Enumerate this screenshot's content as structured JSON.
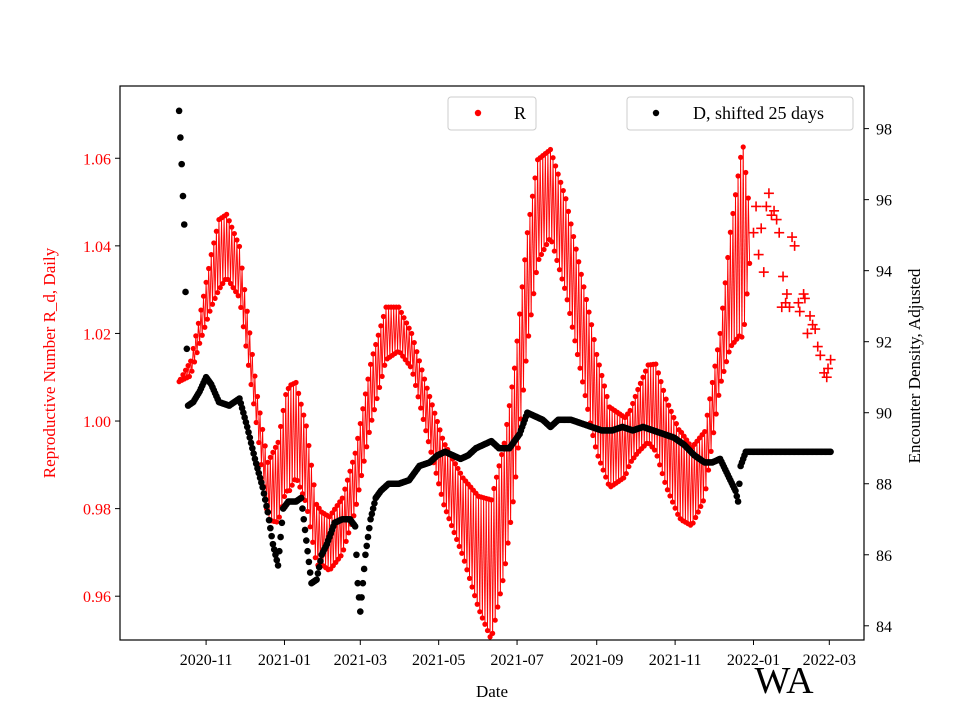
{
  "chart_data": {
    "type": "scatter",
    "xlabel": "Date",
    "x_tick_labels": [
      "2020-11",
      "2021-01",
      "2021-03",
      "2021-05",
      "2021-07",
      "2021-09",
      "2021-11",
      "2022-01",
      "2022-03"
    ],
    "x_tick_days": [
      0,
      61,
      120,
      181,
      242,
      304,
      365,
      426,
      485
    ],
    "x_range_days": [
      -67,
      512
    ],
    "left_axis": {
      "label": "Reproductive Number R_d, Daily",
      "color": "#ff0000",
      "ylim": [
        0.95,
        1.0765
      ],
      "ticks": [
        0.96,
        0.98,
        1.0,
        1.02,
        1.04,
        1.06
      ],
      "tick_labels": [
        "0.96",
        "0.98",
        "1.00",
        "1.02",
        "1.04",
        "1.06"
      ]
    },
    "right_axis": {
      "label": "Encounter Density, Adjusted",
      "color": "#000000",
      "ylim": [
        83.6,
        99.2
      ],
      "ticks": [
        84,
        86,
        88,
        90,
        92,
        94,
        96,
        98
      ],
      "tick_labels": [
        "84",
        "86",
        "88",
        "90",
        "92",
        "94",
        "96",
        "98"
      ]
    },
    "legend_left": {
      "label": "R",
      "color": "#ff0000",
      "placement": "top-center"
    },
    "legend_right": {
      "label": "D, shifted 25 days",
      "color": "#000000",
      "placement": "top-right"
    },
    "series": [
      {
        "name": "R",
        "axis": "left",
        "color": "#ff0000",
        "marker": "dot",
        "day_range": [
          -21,
          423
        ],
        "trend_knots": [
          [
            -21,
            1.009
          ],
          [
            -12,
            1.012
          ],
          [
            -4,
            1.022
          ],
          [
            4,
            1.032
          ],
          [
            10,
            1.038
          ],
          [
            16,
            1.04
          ],
          [
            26,
            1.034
          ],
          [
            38,
            1.006
          ],
          [
            48,
            0.984
          ],
          [
            56,
            0.986
          ],
          [
            62,
            0.995
          ],
          [
            70,
            0.998
          ],
          [
            78,
            0.99
          ],
          [
            86,
            0.974
          ],
          [
            96,
            0.972
          ],
          [
            106,
            0.976
          ],
          [
            116,
            0.986
          ],
          [
            128,
            1.006
          ],
          [
            140,
            1.02
          ],
          [
            150,
            1.021
          ],
          [
            160,
            1.016
          ],
          [
            172,
            1.002
          ],
          [
            185,
            0.988
          ],
          [
            200,
            0.978
          ],
          [
            212,
            0.97
          ],
          [
            222,
            0.966
          ],
          [
            232,
            0.98
          ],
          [
            240,
            0.998
          ],
          [
            250,
            1.03
          ],
          [
            258,
            1.048
          ],
          [
            268,
            1.052
          ],
          [
            280,
            1.04
          ],
          [
            292,
            1.022
          ],
          [
            304,
            1.004
          ],
          [
            314,
            0.994
          ],
          [
            326,
            0.994
          ],
          [
            336,
            1.0
          ],
          [
            344,
            1.004
          ],
          [
            350,
            1.003
          ],
          [
            358,
            0.995
          ],
          [
            368,
            0.988
          ],
          [
            378,
            0.985
          ],
          [
            388,
            0.99
          ],
          [
            398,
            1.01
          ],
          [
            408,
            1.03
          ],
          [
            416,
            1.04
          ],
          [
            423,
            1.042
          ]
        ],
        "oscillation_amplitude": [
          [
            -21,
            0.0
          ],
          [
            -5,
            0.003
          ],
          [
            10,
            0.008
          ],
          [
            40,
            0.004
          ],
          [
            65,
            0.012
          ],
          [
            90,
            0.006
          ],
          [
            130,
            0.007
          ],
          [
            160,
            0.004
          ],
          [
            200,
            0.009
          ],
          [
            222,
            0.016
          ],
          [
            250,
            0.013
          ],
          [
            268,
            0.01
          ],
          [
            300,
            0.012
          ],
          [
            330,
            0.006
          ],
          [
            350,
            0.01
          ],
          [
            370,
            0.01
          ],
          [
            400,
            0.006
          ],
          [
            418,
            0.022
          ],
          [
            423,
            0.006
          ]
        ]
      },
      {
        "name": "R (projected)",
        "axis": "left",
        "color": "#ff0000",
        "marker": "plus",
        "points": [
          [
            426,
            1.043
          ],
          [
            428,
            1.049
          ],
          [
            430,
            1.038
          ],
          [
            432,
            1.044
          ],
          [
            434,
            1.034
          ],
          [
            436,
            1.049
          ],
          [
            438,
            1.052
          ],
          [
            440,
            1.047
          ],
          [
            442,
            1.048
          ],
          [
            444,
            1.046
          ],
          [
            446,
            1.043
          ],
          [
            448,
            1.026
          ],
          [
            449,
            1.033
          ],
          [
            451,
            1.027
          ],
          [
            452,
            1.029
          ],
          [
            454,
            1.026
          ],
          [
            456,
            1.042
          ],
          [
            458,
            1.04
          ],
          [
            461,
            1.027
          ],
          [
            462,
            1.025
          ],
          [
            465,
            1.029
          ],
          [
            466,
            1.028
          ],
          [
            468,
            1.02
          ],
          [
            470,
            1.024
          ],
          [
            472,
            1.022
          ],
          [
            474,
            1.021
          ],
          [
            476,
            1.017
          ],
          [
            478,
            1.015
          ],
          [
            481,
            1.011
          ],
          [
            483,
            1.01
          ],
          [
            484,
            1.012
          ],
          [
            486,
            1.014
          ]
        ]
      },
      {
        "name": "D, shifted 25 days",
        "axis": "right",
        "color": "#000000",
        "marker": "dot",
        "day_range": [
          -21,
          486
        ],
        "trend_knots": [
          [
            -21,
            98.5
          ],
          [
            -19,
            97.0
          ],
          [
            -18,
            96.1
          ],
          [
            -17,
            95.3
          ],
          [
            -16,
            93.4
          ],
          [
            -15,
            91.8
          ],
          [
            -14,
            90.2
          ],
          [
            -10,
            90.3
          ],
          [
            -5,
            90.6
          ],
          [
            0,
            91.0
          ],
          [
            4,
            90.8
          ],
          [
            10,
            90.3
          ],
          [
            18,
            90.2
          ],
          [
            26,
            90.4
          ],
          [
            32,
            89.6
          ],
          [
            38,
            88.7
          ],
          [
            44,
            87.9
          ],
          [
            48,
            87.2
          ],
          [
            52,
            86.3
          ],
          [
            56,
            85.7
          ],
          [
            60,
            87.3
          ],
          [
            64,
            87.5
          ],
          [
            70,
            87.5
          ],
          [
            74,
            87.6
          ],
          [
            78,
            86.4
          ],
          [
            82,
            85.2
          ],
          [
            86,
            85.3
          ],
          [
            90,
            86.0
          ],
          [
            94,
            86.3
          ],
          [
            100,
            86.9
          ],
          [
            106,
            87.0
          ],
          [
            112,
            87.0
          ],
          [
            116,
            86.8
          ],
          [
            118,
            85.2
          ],
          [
            120,
            84.4
          ],
          [
            124,
            86.0
          ],
          [
            128,
            87.0
          ],
          [
            132,
            87.6
          ],
          [
            136,
            87.8
          ],
          [
            142,
            88.0
          ],
          [
            150,
            88.0
          ],
          [
            158,
            88.1
          ],
          [
            166,
            88.5
          ],
          [
            174,
            88.6
          ],
          [
            180,
            88.8
          ],
          [
            186,
            88.9
          ],
          [
            192,
            88.8
          ],
          [
            198,
            88.7
          ],
          [
            204,
            88.8
          ],
          [
            210,
            89.0
          ],
          [
            216,
            89.1
          ],
          [
            222,
            89.2
          ],
          [
            228,
            89.0
          ],
          [
            236,
            89.0
          ],
          [
            244,
            89.4
          ],
          [
            250,
            90.0
          ],
          [
            256,
            89.9
          ],
          [
            262,
            89.8
          ],
          [
            268,
            89.6
          ],
          [
            274,
            89.8
          ],
          [
            284,
            89.8
          ],
          [
            292,
            89.7
          ],
          [
            300,
            89.6
          ],
          [
            308,
            89.5
          ],
          [
            316,
            89.5
          ],
          [
            324,
            89.6
          ],
          [
            332,
            89.5
          ],
          [
            340,
            89.6
          ],
          [
            348,
            89.5
          ],
          [
            356,
            89.4
          ],
          [
            364,
            89.3
          ],
          [
            372,
            89.1
          ],
          [
            380,
            88.8
          ],
          [
            388,
            88.6
          ],
          [
            394,
            88.6
          ],
          [
            400,
            88.7
          ],
          [
            404,
            88.4
          ],
          [
            408,
            88.1
          ],
          [
            412,
            87.8
          ],
          [
            414,
            87.5
          ],
          [
            416,
            88.5
          ],
          [
            420,
            88.9
          ],
          [
            426,
            88.9
          ],
          [
            440,
            88.9
          ],
          [
            460,
            88.9
          ],
          [
            486,
            88.9
          ]
        ]
      }
    ]
  },
  "watermark": "WA"
}
